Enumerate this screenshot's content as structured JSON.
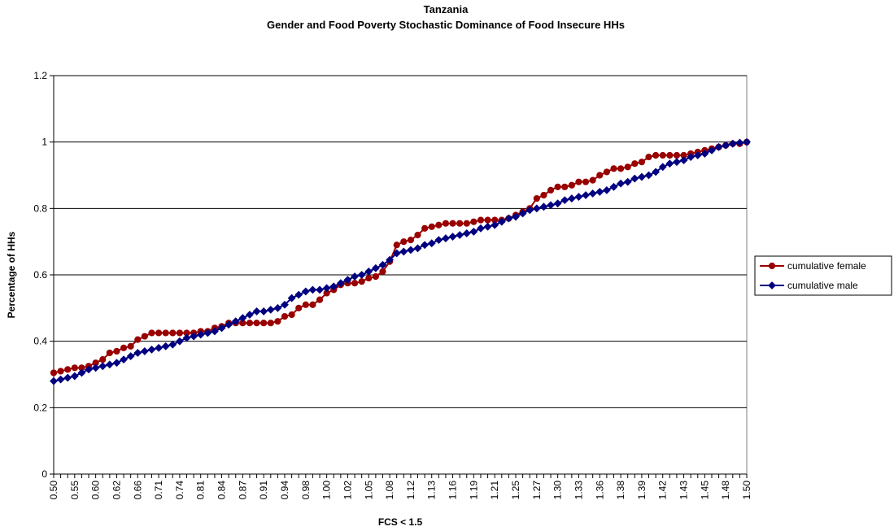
{
  "chart_data": {
    "type": "line",
    "title": "Tanzania",
    "subtitle": "Gender and Food Poverty Stochastic Dominance of Food Insecure HHs",
    "x_label": "FCS < 1.5",
    "y_label": "Percentage of HHs",
    "categories": [
      "0.50",
      null,
      null,
      "0.55",
      null,
      null,
      "0.60",
      null,
      null,
      "0.62",
      null,
      null,
      "0.66",
      null,
      null,
      "0.71",
      null,
      null,
      "0.74",
      null,
      null,
      "0.81",
      null,
      null,
      "0.84",
      null,
      null,
      "0.87",
      null,
      null,
      "0.91",
      null,
      null,
      "0.94",
      null,
      null,
      "0.98",
      null,
      null,
      "1.00",
      null,
      null,
      "1.02",
      null,
      null,
      "1.05",
      null,
      null,
      "1.08",
      null,
      null,
      "1.12",
      null,
      null,
      "1.13",
      null,
      null,
      "1.16",
      null,
      null,
      "1.19",
      null,
      null,
      "1.21",
      null,
      null,
      "1.25",
      null,
      null,
      "1.27",
      null,
      null,
      "1.30",
      null,
      null,
      "1.33",
      null,
      null,
      "1.36",
      null,
      null,
      "1.38",
      null,
      null,
      "1.39",
      null,
      null,
      "1.42",
      null,
      null,
      "1.43",
      null,
      null,
      "1.45",
      null,
      null,
      "1.48",
      null,
      null,
      "1.50"
    ],
    "series": [
      {
        "name": "cumulative female",
        "color": "#990000",
        "marker": "circle",
        "values": [
          0.305,
          0.31,
          0.315,
          0.32,
          0.32,
          0.325,
          0.335,
          0.345,
          0.365,
          0.37,
          0.38,
          0.385,
          0.405,
          0.415,
          0.425,
          0.425,
          0.425,
          0.425,
          0.425,
          0.425,
          0.425,
          0.43,
          0.43,
          0.44,
          0.445,
          0.455,
          0.455,
          0.455,
          0.455,
          0.455,
          0.455,
          0.455,
          0.46,
          0.475,
          0.48,
          0.5,
          0.51,
          0.51,
          0.525,
          0.545,
          0.555,
          0.57,
          0.575,
          0.575,
          0.58,
          0.59,
          0.595,
          0.61,
          0.64,
          0.69,
          0.7,
          0.705,
          0.72,
          0.74,
          0.745,
          0.75,
          0.755,
          0.755,
          0.755,
          0.755,
          0.76,
          0.765,
          0.765,
          0.765,
          0.765,
          0.77,
          0.78,
          0.79,
          0.8,
          0.83,
          0.84,
          0.855,
          0.865,
          0.865,
          0.87,
          0.88,
          0.88,
          0.885,
          0.9,
          0.91,
          0.92,
          0.92,
          0.925,
          0.935,
          0.94,
          0.955,
          0.96,
          0.96,
          0.96,
          0.96,
          0.96,
          0.965,
          0.97,
          0.975,
          0.98,
          0.985,
          0.99,
          0.995,
          0.995,
          1.0
        ]
      },
      {
        "name": "cumulative male",
        "color": "#000080",
        "marker": "diamond",
        "values": [
          0.28,
          0.285,
          0.29,
          0.295,
          0.305,
          0.315,
          0.32,
          0.325,
          0.33,
          0.335,
          0.345,
          0.355,
          0.365,
          0.37,
          0.375,
          0.38,
          0.385,
          0.39,
          0.4,
          0.41,
          0.415,
          0.42,
          0.425,
          0.43,
          0.44,
          0.45,
          0.46,
          0.47,
          0.48,
          0.49,
          0.49,
          0.495,
          0.5,
          0.51,
          0.53,
          0.54,
          0.55,
          0.555,
          0.555,
          0.56,
          0.565,
          0.575,
          0.585,
          0.595,
          0.6,
          0.61,
          0.62,
          0.63,
          0.645,
          0.665,
          0.67,
          0.675,
          0.68,
          0.69,
          0.695,
          0.705,
          0.71,
          0.715,
          0.72,
          0.725,
          0.73,
          0.74,
          0.745,
          0.75,
          0.76,
          0.77,
          0.775,
          0.785,
          0.795,
          0.8,
          0.805,
          0.81,
          0.815,
          0.825,
          0.83,
          0.835,
          0.84,
          0.845,
          0.85,
          0.855,
          0.865,
          0.875,
          0.88,
          0.89,
          0.895,
          0.9,
          0.91,
          0.925,
          0.935,
          0.94,
          0.945,
          0.955,
          0.96,
          0.965,
          0.975,
          0.985,
          0.99,
          0.995,
          0.998,
          1.0
        ]
      }
    ],
    "ylim": [
      0,
      1.2
    ],
    "yticks": [
      0,
      0.2,
      0.4,
      0.6,
      0.8,
      1,
      1.2
    ],
    "grid": true,
    "legend": "right"
  }
}
